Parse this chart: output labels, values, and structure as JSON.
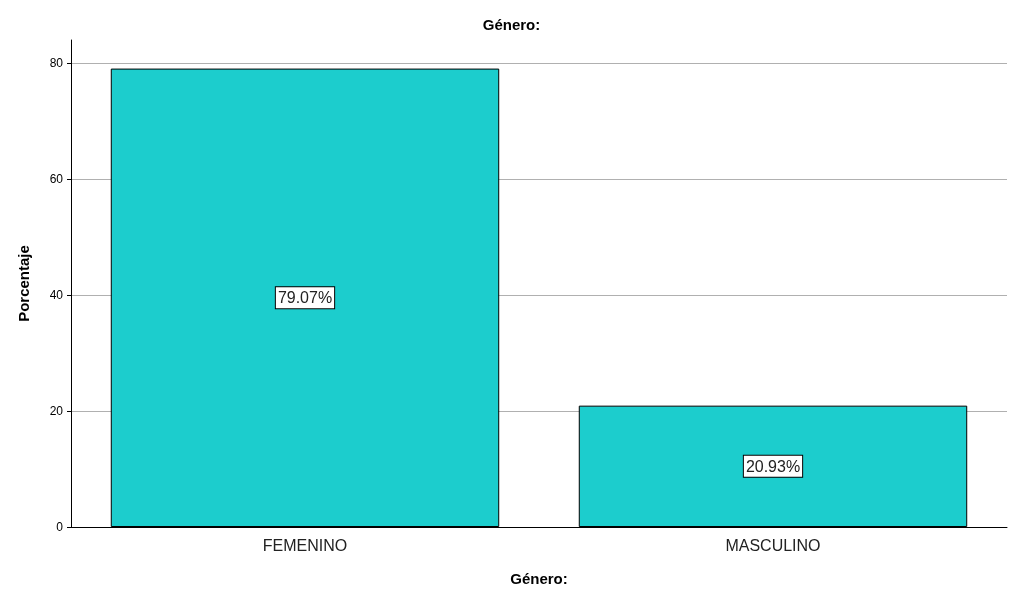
{
  "chart_data": {
    "type": "bar",
    "title": "Género:",
    "xlabel": "Género:",
    "ylabel": "Porcentaje",
    "categories": [
      "FEMENINO",
      "MASCULINO"
    ],
    "values": [
      79.07,
      20.93
    ],
    "value_labels": [
      "79.07%",
      "20.93%"
    ],
    "color": "#1ccdcd",
    "ylim": [
      0,
      84
    ],
    "yticks": [
      0,
      20,
      40,
      60,
      80
    ],
    "grid": "y"
  }
}
